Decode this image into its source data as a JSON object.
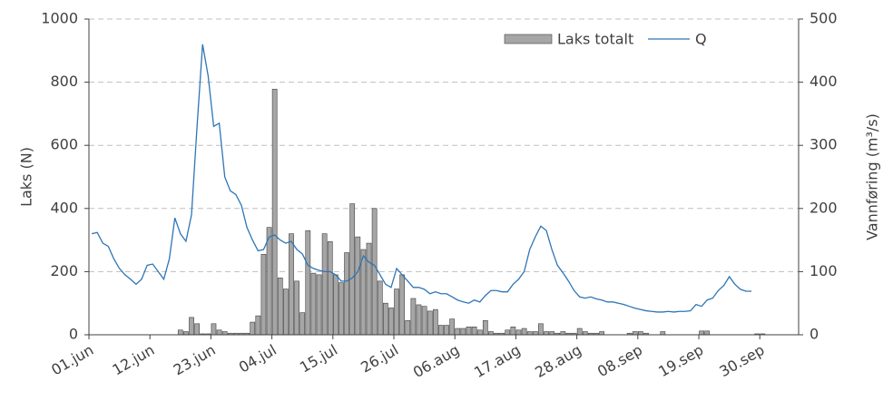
{
  "chart_data": {
    "type": "bar-line",
    "categories": [
      "01.jun",
      null,
      null,
      null,
      null,
      null,
      null,
      null,
      null,
      null,
      null,
      "12.jun",
      null,
      null,
      null,
      null,
      null,
      null,
      null,
      null,
      null,
      null,
      "23.jun",
      null,
      null,
      null,
      null,
      null,
      null,
      null,
      null,
      null,
      null,
      "04.jul",
      null,
      null,
      null,
      null,
      null,
      null,
      null,
      null,
      null,
      null,
      "15.jul",
      null,
      null,
      null,
      null,
      null,
      null,
      null,
      null,
      null,
      null,
      "26.jul",
      null,
      null,
      null,
      null,
      null,
      null,
      null,
      null,
      null,
      null,
      "06.aug",
      null,
      null,
      null,
      null,
      null,
      null,
      null,
      null,
      null,
      null,
      "17.aug",
      null,
      null,
      null,
      null,
      null,
      null,
      null,
      null,
      null,
      null,
      "28.aug",
      null,
      null,
      null,
      null,
      null,
      null,
      null,
      null,
      null,
      null,
      "08.sep",
      null,
      null,
      null,
      null,
      null,
      null,
      null,
      null,
      null,
      null,
      "19.sep",
      null,
      null,
      null,
      null,
      null,
      null,
      null,
      null,
      null,
      null,
      "30.sep",
      null,
      null,
      null,
      null,
      null,
      null
    ],
    "series": [
      {
        "name": "Laks totalt",
        "type": "bar",
        "color": "#a6a6a6",
        "values": [
          0,
          0,
          0,
          0,
          0,
          0,
          0,
          0,
          0,
          0,
          0,
          0,
          0,
          0,
          0,
          0,
          15,
          10,
          55,
          35,
          3,
          3,
          35,
          15,
          10,
          5,
          5,
          5,
          5,
          40,
          60,
          255,
          340,
          778,
          180,
          145,
          320,
          170,
          70,
          330,
          195,
          190,
          320,
          295,
          190,
          165,
          260,
          415,
          310,
          270,
          290,
          400,
          170,
          100,
          85,
          145,
          190,
          45,
          115,
          95,
          90,
          75,
          80,
          30,
          30,
          50,
          20,
          20,
          25,
          25,
          15,
          45,
          10,
          5,
          5,
          15,
          25,
          15,
          20,
          10,
          10,
          35,
          10,
          10,
          5,
          10,
          5,
          5,
          20,
          10,
          5,
          5,
          10,
          0,
          0,
          0,
          0,
          5,
          10,
          10,
          5,
          0,
          0,
          10,
          0,
          0,
          0,
          0,
          0,
          0,
          12,
          12,
          0,
          0,
          0,
          0,
          0,
          0,
          0,
          0,
          3,
          3,
          0,
          0,
          0,
          0,
          0,
          0
        ]
      },
      {
        "name": "Q",
        "type": "line",
        "axis": "y2",
        "color": "#2e75b6",
        "values": [
          160,
          162,
          145,
          140,
          120,
          105,
          95,
          88,
          80,
          88,
          110,
          112,
          100,
          88,
          120,
          185,
          160,
          148,
          190,
          330,
          460,
          410,
          330,
          335,
          250,
          228,
          222,
          205,
          170,
          150,
          133,
          135,
          155,
          158,
          150,
          145,
          148,
          135,
          128,
          110,
          105,
          102,
          100,
          100,
          95,
          85,
          85,
          90,
          100,
          125,
          115,
          110,
          95,
          80,
          75,
          105,
          95,
          85,
          75,
          75,
          72,
          65,
          68,
          65,
          65,
          60,
          55,
          52,
          50,
          55,
          52,
          62,
          70,
          70,
          68,
          68,
          80,
          88,
          100,
          135,
          155,
          172,
          165,
          135,
          110,
          98,
          85,
          70,
          60,
          58,
          60,
          57,
          55,
          52,
          52,
          50,
          48,
          45,
          42,
          40,
          38,
          37,
          36,
          36,
          37,
          36,
          37,
          37,
          38,
          48,
          45,
          55,
          58,
          70,
          78,
          92,
          80,
          72,
          69,
          69,
          null,
          null,
          null,
          null,
          null,
          null,
          null,
          null
        ]
      }
    ],
    "ylabel": "Laks (N)",
    "y2label": "Vannføring (m³/s)",
    "ylim": [
      0,
      1000
    ],
    "yticks": [
      0,
      200,
      400,
      600,
      800,
      1000
    ],
    "y2lim": [
      0,
      500
    ],
    "y2ticks": [
      0,
      100,
      200,
      300,
      400,
      500
    ],
    "grid": true,
    "legend": "top-right"
  }
}
